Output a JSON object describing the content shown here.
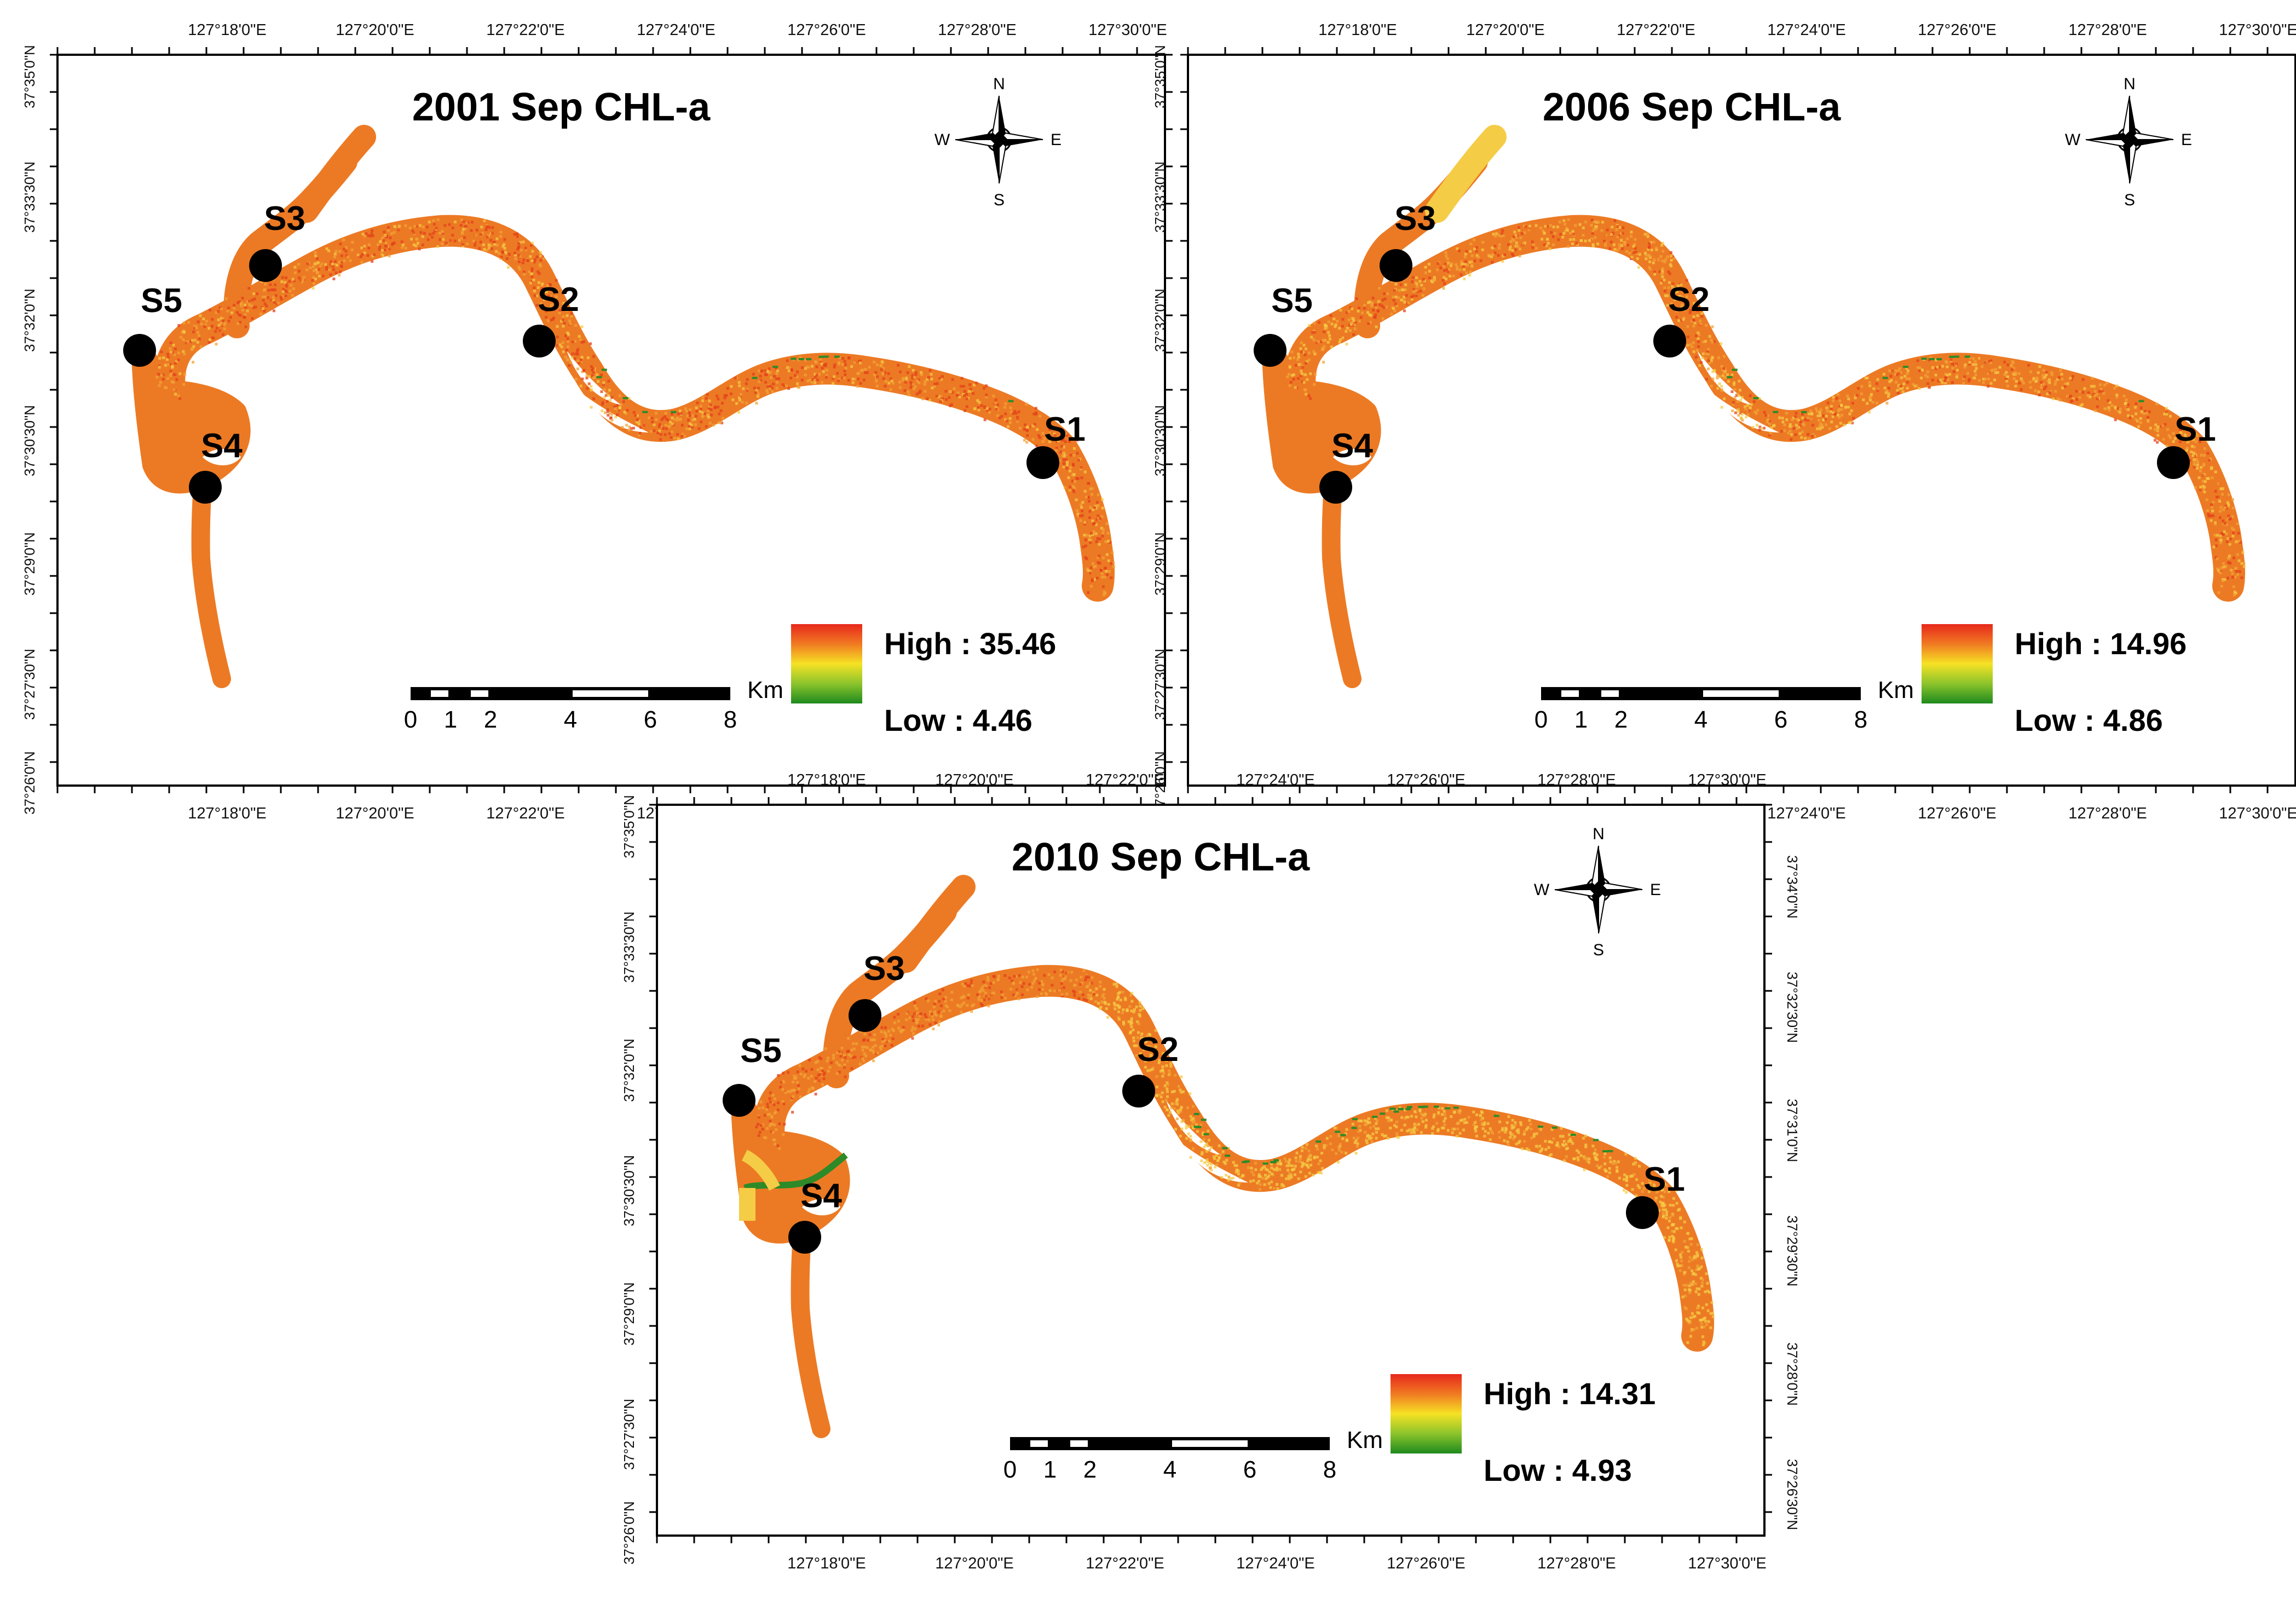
{
  "maps": [
    {
      "title": "2001 Sep CHL-a",
      "legend_high": "High : 35.46",
      "legend_low": "Low : 4.46",
      "variant": "a"
    },
    {
      "title": "2006 Sep CHL-a",
      "legend_high": "High : 14.96",
      "legend_low": "Low : 4.86",
      "variant": "b"
    },
    {
      "title": "2010 Sep CHL-a",
      "legend_high": "High : 14.31",
      "legend_low": "Low : 4.93",
      "variant": "c"
    }
  ],
  "stations": [
    "S1",
    "S2",
    "S3",
    "S4",
    "S5"
  ],
  "compass": {
    "n": "N",
    "e": "E",
    "s": "S",
    "w": "W"
  },
  "scale_bar": {
    "labels": [
      "0",
      "1",
      "2",
      "4",
      "6",
      "8"
    ],
    "unit": "Km"
  },
  "axes": {
    "x_top": [
      "127°18'0\"E",
      "127°20'0\"E",
      "127°22'0\"E",
      "127°24'0\"E",
      "127°26'0\"E",
      "127°28'0\"E",
      "127°30'0\"E"
    ],
    "x_bottom": [
      "127°18'0\"E",
      "127°20'0\"E",
      "127°22'0\"E",
      "127°24'0\"E",
      "127°26'0\"E",
      "127°28'0\"E",
      "127°30'0\"E"
    ],
    "y_left": [
      "37°35'0\"N",
      "37°33'30\"N",
      "37°32'0\"N",
      "37°30'30\"N",
      "37°29'0\"N",
      "37°27'30\"N",
      "37°26'0\"N"
    ],
    "y_right": [
      "37°34'0\"N",
      "37°32'30\"N",
      "37°31'0\"N",
      "37°29'30\"N",
      "37°28'0\"N",
      "37°26'30\"N"
    ]
  },
  "colors": {
    "river_base": "#ec7a24",
    "river_high": "#e4401c",
    "river_mid": "#f2a436",
    "river_light": "#f5cc46",
    "river_green": "#2e8a28",
    "legend_top": "#e8281c",
    "legend_mid": "#f6e224",
    "legend_bottom": "#1e8a1e"
  }
}
